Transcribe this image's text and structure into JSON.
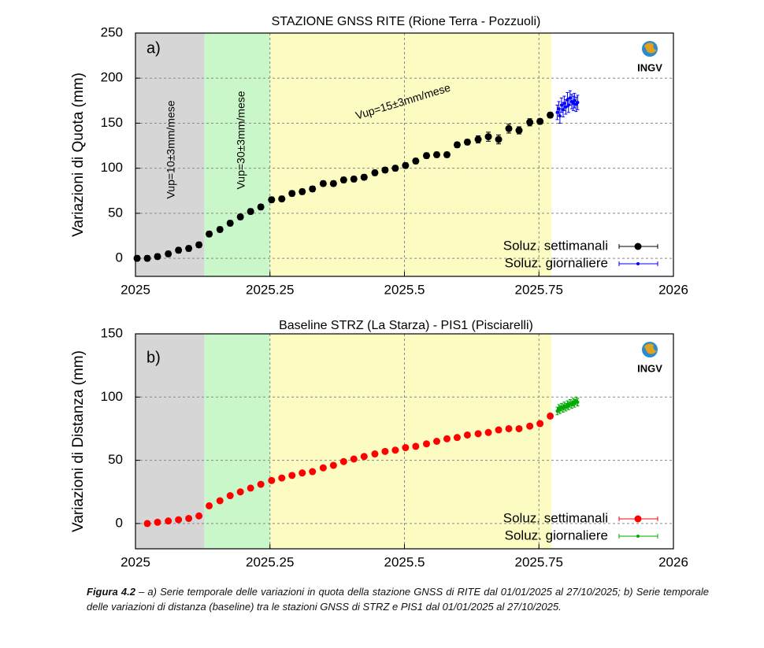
{
  "chart_data": [
    {
      "type": "scatter",
      "title": "STAZIONE GNSS RITE (Rione Terra - Pozzuoli)",
      "y_label": "Variazioni di Quota (mm)",
      "xlim": [
        2025,
        2026
      ],
      "xticks": [
        2025,
        2025.25,
        2025.5,
        2025.75,
        2026
      ],
      "ylim": [
        -20,
        250
      ],
      "yticks": [
        0,
        50,
        100,
        150,
        200,
        250
      ],
      "grid": true,
      "legend": "lower right",
      "regions": [
        {
          "x0": 2025,
          "x1": 2025.128,
          "color": "#d6d6d6"
        },
        {
          "x0": 2025.128,
          "x1": 2025.25,
          "color": "#c9f7c9"
        },
        {
          "x0": 2025.25,
          "x1": 2025.773,
          "color": "#fbfbc2"
        }
      ],
      "annotations": [
        "a)",
        "Vup=10±3mm/mese",
        "Vup=30±3mm/mese",
        "Vup=15±3mm/mese"
      ],
      "series": [
        {
          "name": "Soluz. settimanali",
          "color": "#000000",
          "x": [
            2025.003,
            2025.022,
            2025.041,
            2025.061,
            2025.08,
            2025.099,
            2025.118,
            2025.137,
            2025.157,
            2025.176,
            2025.195,
            2025.214,
            2025.233,
            2025.253,
            2025.272,
            2025.291,
            2025.31,
            2025.329,
            2025.349,
            2025.368,
            2025.387,
            2025.406,
            2025.425,
            2025.445,
            2025.464,
            2025.483,
            2025.502,
            2025.521,
            2025.541,
            2025.56,
            2025.579,
            2025.598,
            2025.617,
            2025.637,
            2025.656,
            2025.675,
            2025.694,
            2025.713,
            2025.733,
            2025.752,
            2025.771
          ],
          "values": [
            0,
            0,
            2,
            5,
            9,
            11,
            15,
            27,
            32,
            39,
            46,
            52,
            57,
            65,
            66,
            72,
            74,
            77,
            83,
            83,
            87,
            88,
            90,
            95,
            98,
            100,
            103,
            108,
            114,
            115,
            115,
            126,
            129,
            132,
            135,
            132,
            144,
            142,
            151,
            152,
            159
          ],
          "errors": [
            3,
            3,
            3,
            3,
            3,
            3,
            3,
            3,
            3,
            3,
            3,
            3,
            3,
            3,
            3,
            3,
            3,
            3,
            3,
            3,
            3,
            3,
            3,
            3,
            3,
            3,
            3,
            3,
            3,
            3,
            3,
            3,
            3,
            4,
            5,
            5,
            5,
            4,
            4,
            3,
            3
          ]
        },
        {
          "name": "Soluz. giornaliere",
          "color": "#0000ff",
          "x": [
            2025.784,
            2025.787,
            2025.789,
            2025.792,
            2025.795,
            2025.797,
            2025.8,
            2025.803,
            2025.805,
            2025.808,
            2025.811,
            2025.814,
            2025.816,
            2025.819,
            2025.822
          ],
          "values": [
            162,
            166,
            158,
            170,
            165,
            172,
            168,
            176,
            170,
            178,
            174,
            172,
            175,
            171,
            173
          ],
          "errors": [
            8,
            8,
            8,
            8,
            8,
            8,
            8,
            8,
            8,
            8,
            8,
            8,
            8,
            8,
            8
          ]
        }
      ]
    },
    {
      "type": "scatter",
      "title": "Baseline STRZ (La Starza) - PIS1 (Pisciarelli)",
      "y_label": "Variazioni di Distanza (mm)",
      "xlim": [
        2025,
        2026
      ],
      "xticks": [
        2025,
        2025.25,
        2025.5,
        2025.75,
        2026
      ],
      "ylim": [
        -20,
        150
      ],
      "yticks": [
        0,
        50,
        100,
        150
      ],
      "grid": true,
      "legend": "lower right",
      "regions": [
        {
          "x0": 2025,
          "x1": 2025.128,
          "color": "#d6d6d6"
        },
        {
          "x0": 2025.128,
          "x1": 2025.25,
          "color": "#c9f7c9"
        },
        {
          "x0": 2025.25,
          "x1": 2025.773,
          "color": "#fbfbc2"
        }
      ],
      "annotations": [
        "b)"
      ],
      "series": [
        {
          "name": "Soluz. settimanali",
          "color": "#ff0000",
          "x": [
            2025.022,
            2025.041,
            2025.061,
            2025.08,
            2025.099,
            2025.118,
            2025.137,
            2025.157,
            2025.176,
            2025.195,
            2025.214,
            2025.233,
            2025.253,
            2025.272,
            2025.291,
            2025.31,
            2025.329,
            2025.349,
            2025.368,
            2025.387,
            2025.406,
            2025.425,
            2025.445,
            2025.464,
            2025.483,
            2025.502,
            2025.521,
            2025.541,
            2025.56,
            2025.579,
            2025.598,
            2025.617,
            2025.637,
            2025.656,
            2025.675,
            2025.694,
            2025.713,
            2025.733,
            2025.752,
            2025.771
          ],
          "values": [
            0,
            1,
            2,
            3,
            4,
            6,
            14,
            18,
            22,
            25,
            28,
            31,
            34,
            36,
            38,
            40,
            41,
            44,
            46,
            49,
            51,
            53,
            55,
            57,
            58,
            60,
            61,
            63,
            65,
            67,
            68,
            70,
            71,
            72,
            74,
            75,
            75,
            77,
            79,
            85
          ],
          "errors": [
            1,
            1,
            1,
            1,
            1,
            1,
            1,
            1,
            1,
            1,
            1,
            1,
            1,
            1,
            1,
            1,
            1,
            1,
            1,
            1,
            1,
            1,
            1,
            1,
            1,
            1,
            1,
            1,
            1,
            1,
            1,
            1,
            1,
            1,
            1,
            1,
            1,
            1,
            1,
            1
          ]
        },
        {
          "name": "Soluz. giornaliere",
          "color": "#00aa00",
          "x": [
            2025.784,
            2025.787,
            2025.789,
            2025.792,
            2025.795,
            2025.797,
            2025.8,
            2025.803,
            2025.805,
            2025.808,
            2025.811,
            2025.814,
            2025.816,
            2025.819,
            2025.822
          ],
          "values": [
            89,
            91,
            90,
            92,
            91,
            93,
            92,
            94,
            93,
            95,
            94,
            96,
            95,
            97,
            96
          ],
          "errors": [
            3,
            3,
            3,
            3,
            3,
            3,
            3,
            3,
            3,
            3,
            3,
            3,
            3,
            3,
            3
          ]
        }
      ]
    }
  ],
  "logo": "INGV",
  "caption": {
    "label": "Figura 4.2",
    "text": " – a) Serie temporale delle variazioni in quota della stazione GNSS di RITE dal 01/01/2025 al 27/10/2025; b) Serie temporale delle variazioni di distanza (baseline) tra le stazioni GNSS di STRZ e PIS1 dal 01/01/2025 al 27/10/2025."
  }
}
